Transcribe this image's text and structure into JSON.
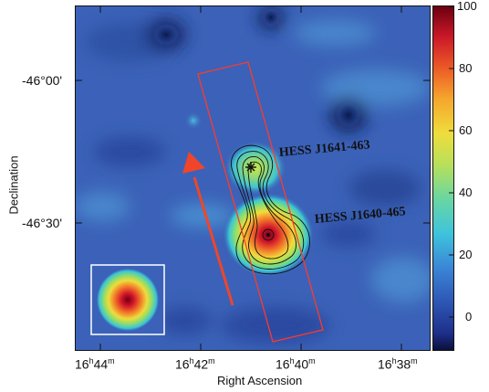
{
  "axes": {
    "xlabel": "Right Ascension",
    "ylabel": "Declination",
    "x_ticks": [
      {
        "h": "16",
        "hs": "h",
        "m": "44",
        "ms": "m"
      },
      {
        "h": "16",
        "hs": "h",
        "m": "42",
        "ms": "m"
      },
      {
        "h": "16",
        "hs": "h",
        "m": "40",
        "ms": "m"
      },
      {
        "h": "16",
        "hs": "h",
        "m": "38",
        "ms": "m"
      }
    ],
    "y_ticks": [
      "-46°00'",
      "-46°30'"
    ]
  },
  "colorbar": {
    "ticks": [
      "100",
      "80",
      "60",
      "40",
      "20",
      "0"
    ],
    "range": [
      -10,
      100
    ]
  },
  "sources": [
    {
      "label": "HESS J1641-463"
    },
    {
      "label": "HESS J1640-465"
    }
  ],
  "colors": {
    "background": "#3b62b8",
    "box": "#ff3a2a",
    "arrow": "#f0452a",
    "contour": "#111111"
  }
}
